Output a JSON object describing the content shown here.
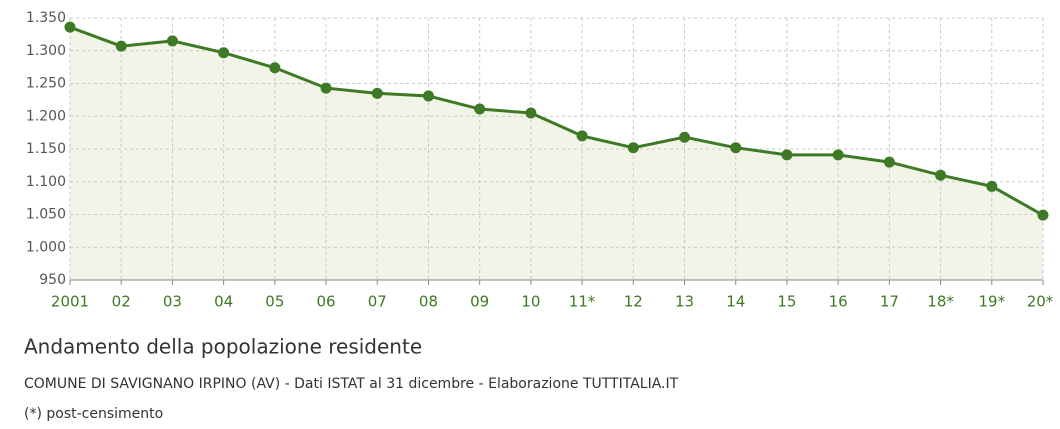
{
  "chart_data": {
    "type": "line",
    "title": "Andamento della popolazione residente",
    "subtitle": "COMUNE DI SAVIGNANO IRPINO (AV) - Dati ISTAT al 31 dicembre - Elaborazione TUTTITALIA.IT",
    "note": "(*) post-censimento",
    "categories": [
      "2001",
      "02",
      "03",
      "04",
      "05",
      "06",
      "07",
      "08",
      "09",
      "10",
      "11*",
      "12",
      "13",
      "14",
      "15",
      "16",
      "17",
      "18*",
      "19*",
      "20*"
    ],
    "series": [
      {
        "name": "Popolazione residente",
        "color": "#3e7a26",
        "fill": "#f1f4e6",
        "values": [
          1336,
          1307,
          1315,
          1297,
          1274,
          1243,
          1235,
          1231,
          1211,
          1205,
          1170,
          1152,
          1168,
          1152,
          1141,
          1141,
          1130,
          1110,
          1093,
          1049
        ]
      }
    ],
    "ylim": [
      950,
      1350
    ],
    "yticks": [
      950,
      {
        "value": 1000,
        "label": "1.000"
      },
      {
        "value": 1050,
        "label": "1.050"
      },
      {
        "value": 1100,
        "label": "1.100"
      },
      {
        "value": 1150,
        "label": "1.150"
      },
      {
        "value": 1200,
        "label": "1.200"
      },
      {
        "value": 1250,
        "label": "1.250"
      },
      {
        "value": 1300,
        "label": "1.300"
      },
      {
        "value": 1350,
        "label": "1.350"
      }
    ],
    "grid": true
  }
}
